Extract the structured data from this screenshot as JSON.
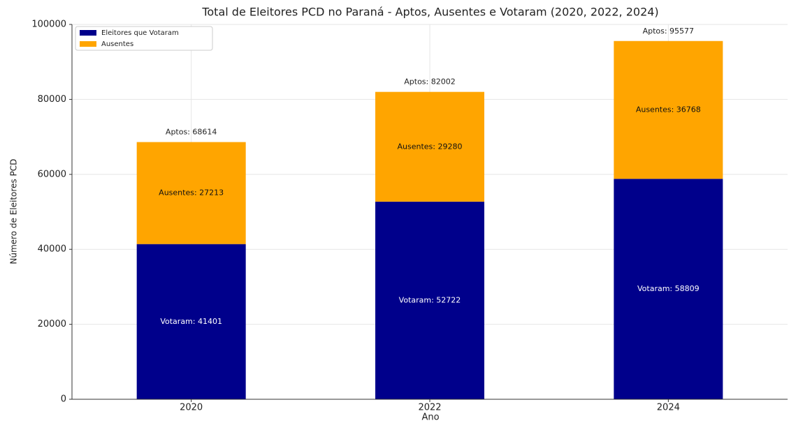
{
  "chart_data": {
    "type": "stacked_bar",
    "title": "Total de Eleitores PCD no Paraná - Aptos, Ausentes e Votaram (2020, 2022, 2024)",
    "x_label": "Ano",
    "y_label": "Número de Eleitores PCD",
    "categories": [
      "2020",
      "2022",
      "2024"
    ],
    "series": [
      {
        "name": "Eleitores que Votaram",
        "color": "#00008b",
        "values": [
          41401,
          52722,
          58809
        ],
        "value_labels": [
          "Votaram: 41401",
          "Votaram: 52722",
          "Votaram: 58809"
        ]
      },
      {
        "name": "Ausentes",
        "color": "#ffa500",
        "values": [
          27213,
          29280,
          36768
        ],
        "value_labels": [
          "Ausentes: 27213",
          "Ausentes: 29280",
          "Ausentes: 36768"
        ]
      }
    ],
    "totals": [
      68614,
      82002,
      95577
    ],
    "total_labels": [
      "Aptos: 68614",
      "Aptos: 82002",
      "Aptos: 95577"
    ],
    "ylim": [
      0,
      100000
    ],
    "yticks": [
      0,
      20000,
      40000,
      60000,
      80000,
      100000
    ],
    "grid": true,
    "legend": "upper left"
  }
}
